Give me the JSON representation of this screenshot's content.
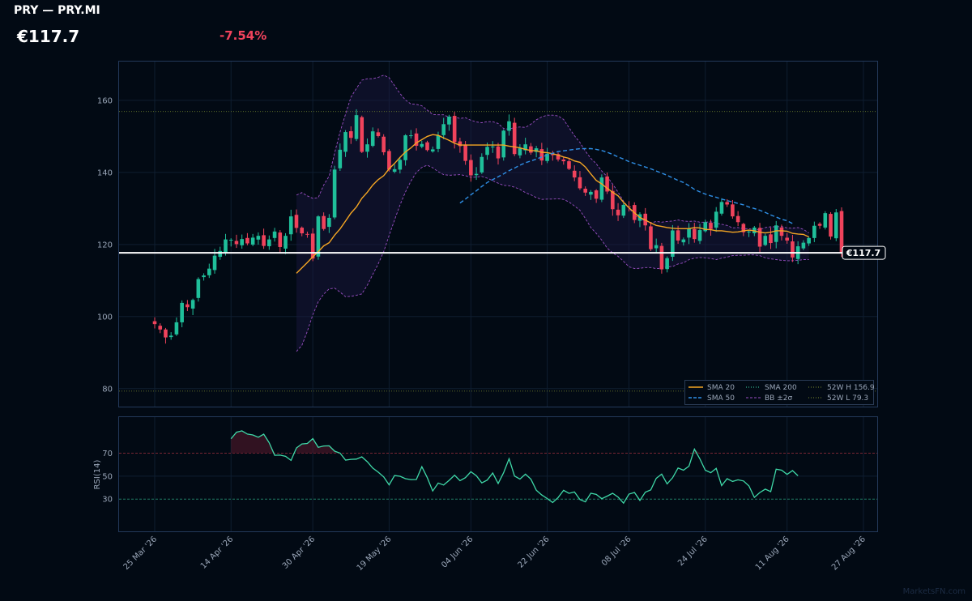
{
  "header": {
    "title": "PRY — PRY.MI",
    "price": "€117.7",
    "change": "-7.54%"
  },
  "watermark": "MarketsFN.com",
  "colors": {
    "background": "#020a14",
    "up": "#1fbf9a",
    "down": "#f0435c",
    "sma20": "#f5a623",
    "sma50": "#2f8fe6",
    "bollinger": "#9a4fc4",
    "rsi": "#3fd9a8",
    "high52": "#7a8a2e",
    "low52": "#7a8a2e"
  },
  "chart_data": [
    {
      "type": "candlestick",
      "xlabel": "",
      "ylabel": "",
      "ylim": [
        75,
        171
      ],
      "yticks": [
        80,
        100,
        120,
        140,
        160
      ],
      "x_ticks": [
        "25 Mar '26",
        "14 Apr '26",
        "30 Apr '26",
        "19 May '26",
        "04 Jun '26",
        "22 Jun '26",
        "08 Jul '26",
        "24 Jul '26",
        "11 Aug '26",
        "27 Aug '26"
      ],
      "last_price_label": "€117.7",
      "last_price": 117.7,
      "high_52w": 156.9,
      "low_52w": 79.3,
      "legend_position": "bottom-right",
      "legend": [
        "SMA 20",
        "SMA 50",
        "SMA 200",
        "BB ±2σ",
        "52W H 156.9",
        "52W L 79.3"
      ],
      "close": [
        97.9,
        96.4,
        94.2,
        94.7,
        98.4,
        103.8,
        102.6,
        104.6,
        110.4,
        111.4,
        113.3,
        116.9,
        118.2,
        121.4,
        121.3,
        120.1,
        121.5,
        120.3,
        121.9,
        122.4,
        119.6,
        121.4,
        123.6,
        119.3,
        122.4,
        127.8,
        124.6,
        123.1,
        122.8,
        116.1,
        127.8,
        124.3,
        127.4,
        140.8,
        146.3,
        151.2,
        149.6,
        155.9,
        145.7,
        147.8,
        151.4,
        150.1,
        145.6,
        140.8,
        140.9,
        143.5,
        150.3,
        150.3,
        147.4,
        147.9,
        146.2,
        146.4,
        150.3,
        153.4,
        155.5,
        148.4,
        147.3,
        143.2,
        139.2,
        139.6,
        144.3,
        147.1,
        147.2,
        143.9,
        151.6,
        154.2,
        145.1,
        146.7,
        147.8,
        145.5,
        146.7,
        143.3,
        145.2,
        145.0,
        143.6,
        143.1,
        141.0,
        138.6,
        135.6,
        134.4,
        134.6,
        132.7,
        138.6,
        134.7,
        129.8,
        128.1,
        131.0,
        130.4,
        126.8,
        128.4,
        125.3,
        118.7,
        119.8,
        113.1,
        116.2,
        123.9,
        121.1,
        121.4,
        124.4,
        121.5,
        124.0,
        126.2,
        124.3,
        129.1,
        131.8,
        131.1,
        127.8,
        126.2,
        123.4,
        123.6,
        124.7,
        119.4,
        122.4,
        120.4,
        125.3,
        122.4,
        121.1,
        116.4,
        119.5,
        120.5,
        121.8,
        125.2,
        125.2,
        128.7,
        122.2,
        128.9,
        117.7
      ],
      "series": [
        {
          "name": "SMA 20",
          "start_index": 26,
          "values": [
            112.0,
            113.5,
            115.0,
            116.6,
            118.0,
            119.6,
            120.5,
            122.6,
            124.3,
            126.5,
            128.7,
            130.4,
            132.8,
            134.5,
            136.5,
            138.0,
            139.1,
            141.0,
            142.5,
            144.2,
            145.7,
            146.8,
            148.2,
            149.1,
            150.0,
            150.5,
            150.3,
            149.6,
            148.9,
            148.1,
            147.6,
            147.6,
            147.6,
            147.6,
            147.6,
            147.6,
            147.6,
            147.6,
            147.6,
            147.3,
            147.1,
            146.8,
            146.4,
            146.1,
            146.0,
            145.6,
            145.5,
            145.2,
            144.8,
            144.3,
            143.9,
            143.2,
            142.8,
            141.5,
            139.6,
            137.8,
            136.8,
            135.6,
            134.5,
            133.5,
            131.7,
            130.2,
            128.8,
            127.5,
            126.8,
            126.0,
            125.3,
            125.0,
            124.7,
            124.5,
            124.4,
            124.4,
            124.4,
            124.7,
            124.6,
            124.2,
            124.1,
            123.8,
            123.8,
            123.6,
            123.4,
            123.5,
            123.8,
            124.0,
            123.8,
            123.4,
            123.2,
            123.4,
            123.8,
            123.8,
            123.7,
            123.1,
            122.9,
            122.8,
            122.1
          ]
        },
        {
          "name": "SMA 50",
          "start_index": 56,
          "values": [
            131.5,
            132.6,
            133.8,
            134.9,
            136.1,
            137.2,
            138.0,
            138.8,
            139.6,
            140.5,
            141.2,
            142.0,
            142.7,
            143.2,
            143.7,
            144.3,
            144.8,
            145.3,
            145.8,
            146.0,
            146.2,
            146.4,
            146.6,
            146.6,
            146.6,
            146.4,
            146.1,
            145.6,
            145.0,
            144.3,
            143.7,
            143.0,
            142.5,
            142.0,
            141.5,
            141.0,
            140.4,
            139.8,
            139.2,
            138.5,
            137.8,
            137.2,
            136.3,
            135.3,
            134.6,
            134.0,
            133.5,
            133.1,
            132.6,
            132.2,
            131.8,
            131.4,
            131.0,
            130.4,
            130.0,
            129.5,
            128.9,
            128.2,
            127.6,
            127.0,
            126.6,
            125.8
          ]
        },
        {
          "name": "BB ±2σ",
          "role": "upper",
          "start_index": 26,
          "values": [
            133.7,
            134.4,
            133.5,
            132.8,
            133.0,
            136.5,
            139.0,
            145.4,
            151.2,
            156.2,
            160.9,
            163.3,
            165.6,
            166.0,
            166.0,
            166.4,
            167.0,
            166.3,
            164.1,
            161.9,
            160.1,
            159.0,
            158.9,
            158.5,
            157.3,
            156.1,
            156.0,
            156.0,
            155.3,
            155.3,
            155.0,
            155.2,
            154.5,
            154.0,
            153.8,
            154.1,
            154.1,
            153.6,
            152.2,
            152.0,
            152.5,
            152.6,
            152.5,
            153.4,
            154.6,
            155.4,
            155.9,
            155.9,
            155.7,
            154.7,
            152.4,
            150.2,
            148.3,
            145.9,
            143.9,
            142.4,
            140.4,
            138.8,
            136.8,
            134.5,
            132.0,
            130.2,
            128.1,
            127.1,
            126.6,
            126.0,
            126.4,
            126.2,
            126.4,
            126.5,
            126.8,
            126.5,
            126.4,
            126.5,
            126.2,
            126.2,
            126.3,
            125.9,
            125.6,
            125.3,
            124.6,
            124.7,
            124.4,
            124.4,
            124.1,
            124.1,
            124.7,
            124.9,
            124.9,
            125.0,
            124.6,
            124.5,
            124.7,
            124.2,
            123.2
          ]
        },
        {
          "name": "BB ±2σ",
          "role": "lower",
          "start_index": 26,
          "values": [
            90.3,
            92.0,
            95.9,
            100.5,
            104.1,
            106.2,
            107.7,
            107.9,
            106.8,
            105.5,
            105.6,
            105.9,
            106.3,
            108.7,
            111.7,
            114.6,
            118.0,
            122.5,
            126.8,
            131.0,
            134.6,
            137.6,
            140.0,
            141.4,
            142.0,
            141.3,
            140.2,
            139.4,
            139.2,
            139.3,
            139.4,
            139.1,
            138.6,
            138.7,
            138.9,
            138.4,
            137.7,
            137.0,
            136.4,
            136.3,
            135.9,
            135.3,
            134.4,
            133.8,
            133.0,
            132.5,
            132.6,
            132.6,
            132.7,
            132.5,
            131.8,
            130.7,
            129.5,
            127.2,
            124.7,
            123.1,
            121.2,
            119.0,
            117.7,
            116.7,
            115.3,
            113.8,
            113.3,
            113.4,
            113.6,
            113.6,
            113.3,
            113.4,
            113.8,
            113.9,
            114.6,
            114.9,
            115.8,
            116.2,
            116.4,
            116.3,
            116.1,
            115.8,
            116.2,
            116.5,
            116.9,
            117.0,
            117.0,
            117.1,
            117.1,
            116.9,
            116.3,
            116.0,
            115.8,
            115.6,
            115.5,
            115.5,
            115.6,
            115.8,
            115.8
          ]
        }
      ]
    },
    {
      "type": "line",
      "ylabel": "RSI(14)",
      "ylim": [
        2,
        102
      ],
      "yticks": [
        30,
        50,
        70
      ],
      "overbought": 70,
      "oversold": 30,
      "series": [
        {
          "name": "RSI(14)",
          "start_index": 14,
          "values": [
            82.5,
            88.2,
            89.4,
            86.6,
            85.8,
            83.8,
            86.5,
            79.1,
            68.1,
            68.3,
            67.2,
            63.7,
            74.5,
            78.0,
            78.4,
            82.6,
            75.1,
            76.2,
            76.4,
            71.7,
            70.0,
            64.0,
            64.6,
            64.8,
            66.8,
            62.5,
            57.0,
            53.5,
            49.3,
            42.4,
            50.5,
            49.9,
            47.8,
            47.0,
            47.1,
            58.2,
            48.7,
            37.1,
            44.0,
            42.3,
            46.3,
            50.8,
            46.0,
            48.7,
            53.8,
            50.4,
            44.1,
            46.6,
            52.7,
            43.6,
            52.9,
            65.2,
            50.1,
            47.4,
            51.7,
            47.4,
            37.8,
            33.6,
            30.5,
            27.1,
            31.4,
            37.6,
            35.0,
            36.2,
            29.7,
            27.6,
            35.1,
            34.1,
            30.4,
            32.6,
            35.1,
            31.8,
            26.5,
            34.4,
            35.8,
            28.9,
            36.0,
            38.0,
            48.1,
            51.7,
            43.3,
            48.6,
            57.1,
            55.2,
            58.7,
            73.5,
            65.1,
            55.2,
            53.0,
            56.8,
            41.8,
            47.8,
            45.4,
            46.8,
            45.8,
            41.5,
            31.5,
            35.7,
            38.7,
            36.5,
            56.1,
            55.2,
            51.5,
            54.8,
            50.3
          ]
        }
      ]
    }
  ]
}
